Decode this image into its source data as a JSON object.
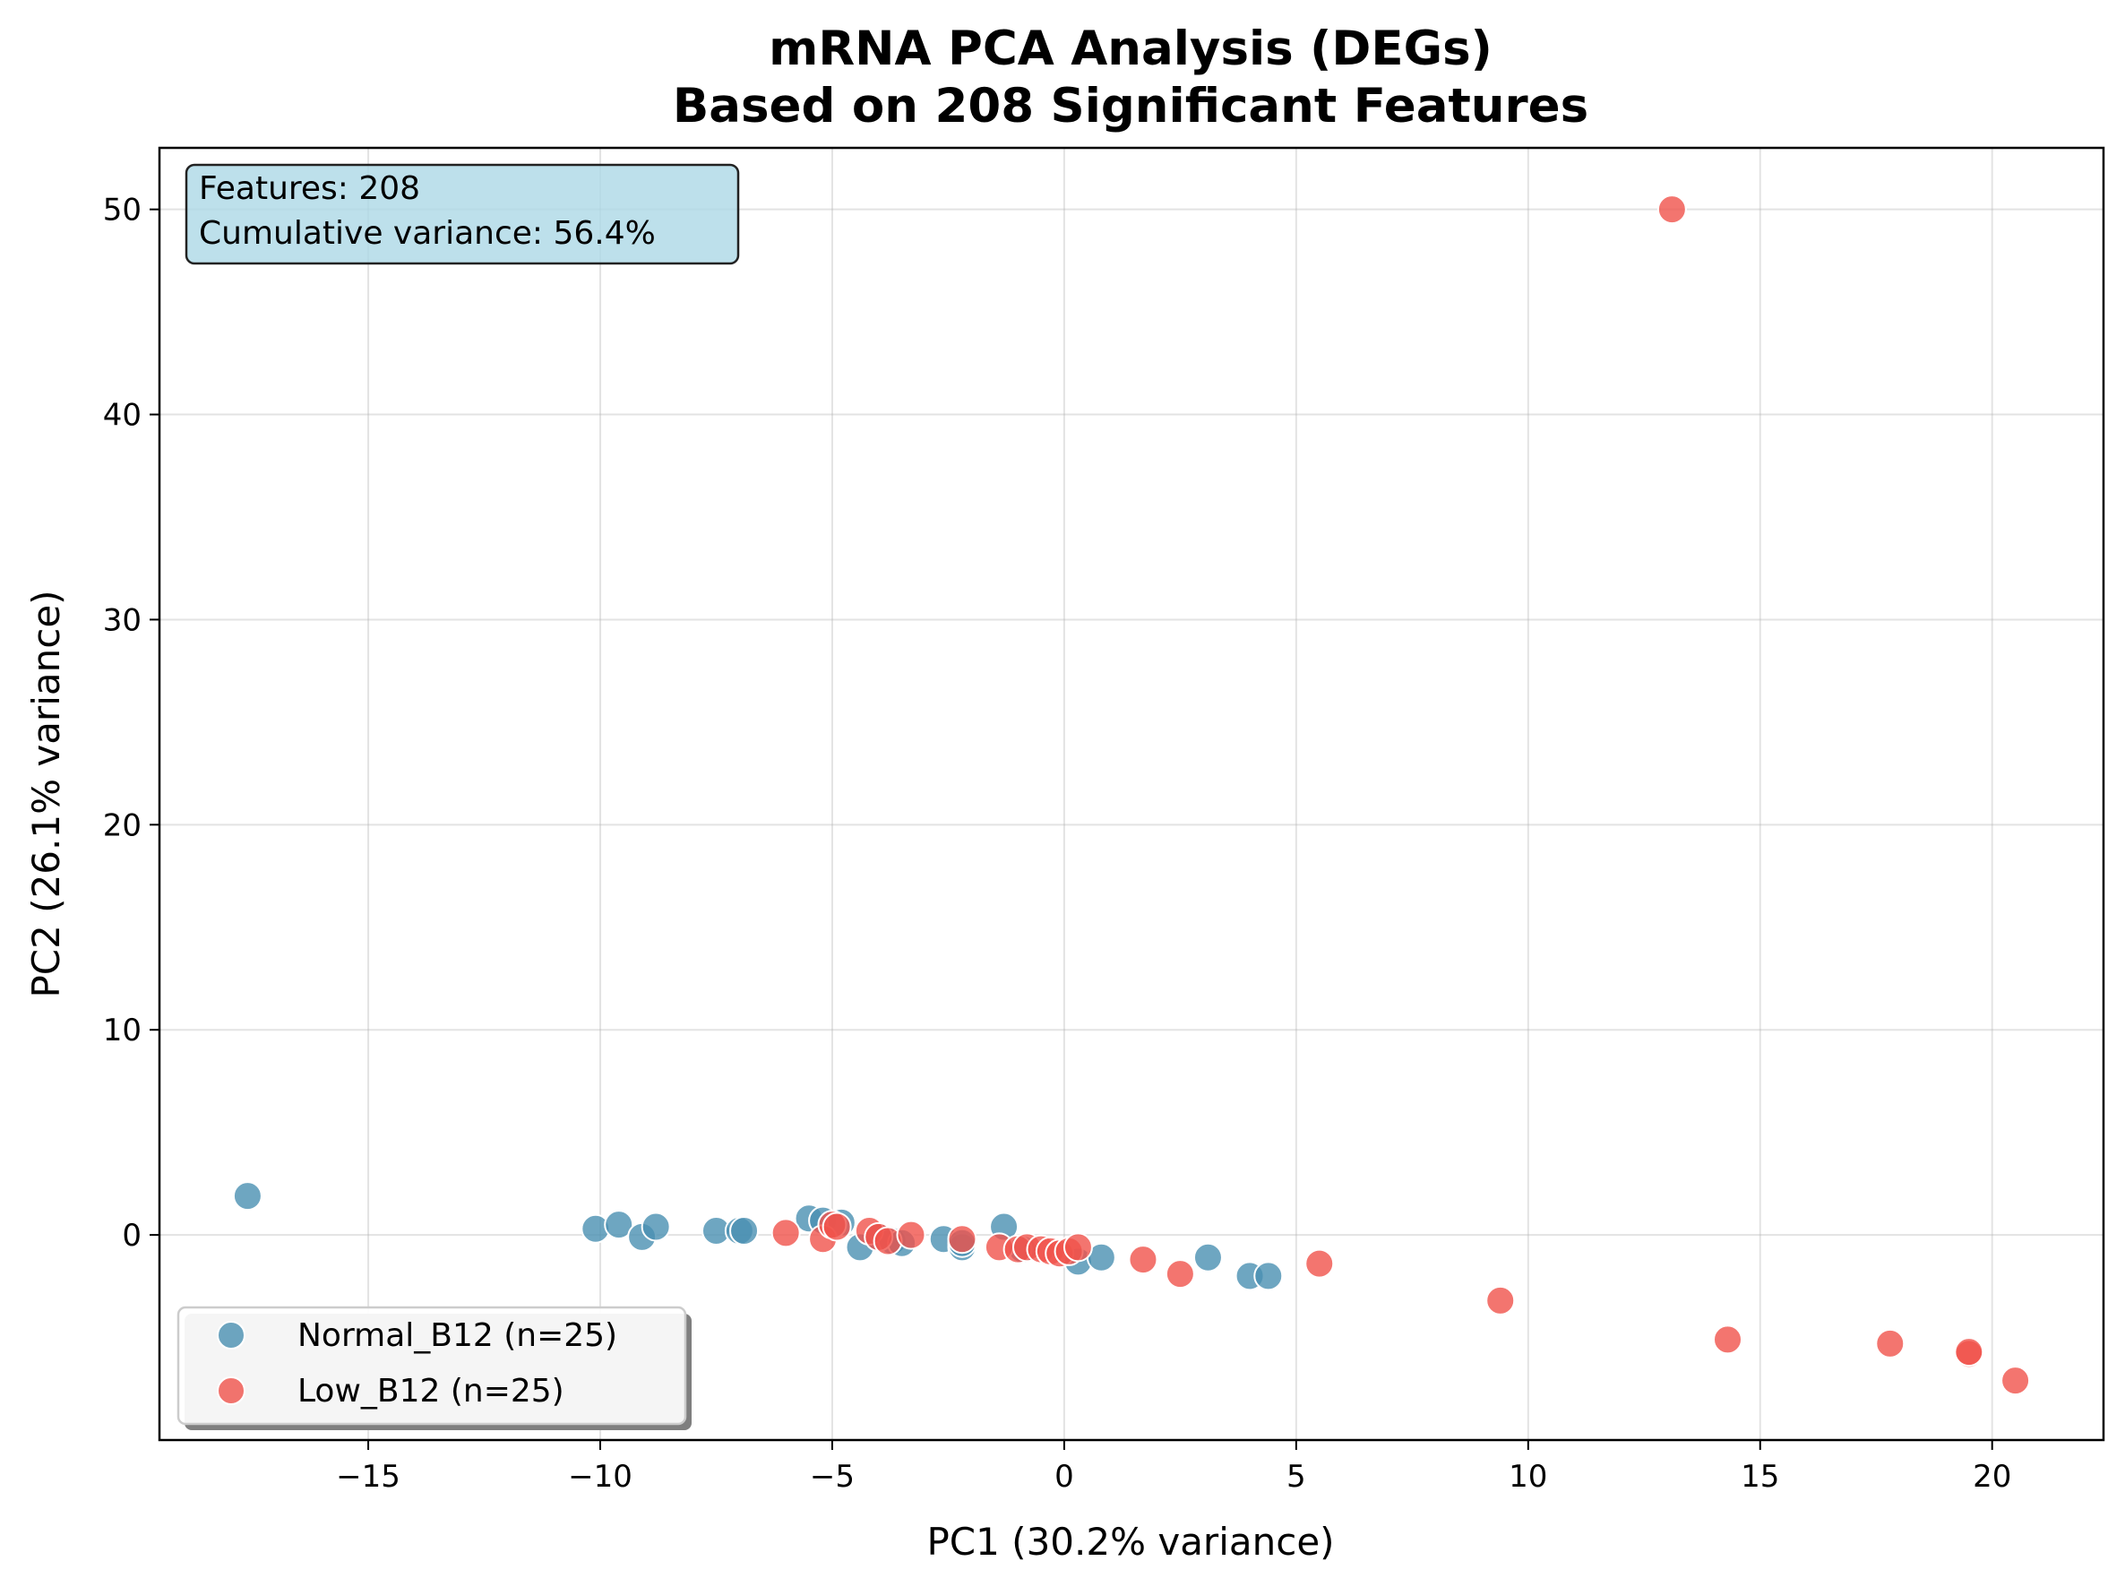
{
  "chart_data": {
    "type": "scatter",
    "title_line1": "mRNA PCA Analysis (DEGs)",
    "title_line2": "Based on 208 Significant Features",
    "xlabel": "PC1 (30.2% variance)",
    "ylabel": "PC2 (26.1% variance)",
    "xlim": [
      -19.5,
      22.4
    ],
    "ylim": [
      -10,
      53
    ],
    "xticks": [
      -15,
      -10,
      -5,
      0,
      5,
      10,
      15,
      20
    ],
    "xtick_labels": [
      "−15",
      "−10",
      "−5",
      "0",
      "5",
      "10",
      "15",
      "20"
    ],
    "yticks": [
      0,
      10,
      20,
      30,
      40,
      50
    ],
    "ytick_labels": [
      "0",
      "10",
      "20",
      "30",
      "40",
      "50"
    ],
    "grid": true,
    "info_box": {
      "line1": "Features: 208",
      "line2": "Cumulative variance: 56.4%"
    },
    "legend_position": "lower-left",
    "series": [
      {
        "name": "Normal_B12 (n=25)",
        "color": "#4a90b2",
        "points": [
          [
            -17.6,
            1.9
          ],
          [
            -10.1,
            0.3
          ],
          [
            -9.6,
            0.5
          ],
          [
            -9.1,
            -0.1
          ],
          [
            -8.8,
            0.4
          ],
          [
            -7.5,
            0.2
          ],
          [
            -7.0,
            0.2
          ],
          [
            -6.9,
            0.2
          ],
          [
            -5.5,
            0.8
          ],
          [
            -5.2,
            0.7
          ],
          [
            -4.8,
            0.6
          ],
          [
            -4.4,
            -0.6
          ],
          [
            -4.0,
            -0.1
          ],
          [
            -3.7,
            -0.3
          ],
          [
            -3.5,
            -0.4
          ],
          [
            -2.6,
            -0.2
          ],
          [
            -2.2,
            -0.6
          ],
          [
            -2.2,
            -0.4
          ],
          [
            -1.3,
            0.4
          ],
          [
            -0.9,
            -0.7
          ],
          [
            0.3,
            -1.3
          ],
          [
            0.8,
            -1.1
          ],
          [
            3.1,
            -1.1
          ],
          [
            4.0,
            -2.0
          ],
          [
            4.4,
            -2.0
          ]
        ]
      },
      {
        "name": "Low_B12 (n=25)",
        "color": "#f0524b",
        "points": [
          [
            -6.0,
            0.1
          ],
          [
            -5.2,
            -0.2
          ],
          [
            -5.0,
            0.5
          ],
          [
            -4.9,
            0.4
          ],
          [
            -4.2,
            0.2
          ],
          [
            -4.0,
            -0.1
          ],
          [
            -3.8,
            -0.3
          ],
          [
            -3.3,
            0.0
          ],
          [
            -2.2,
            -0.2
          ],
          [
            -1.4,
            -0.6
          ],
          [
            -1.0,
            -0.7
          ],
          [
            -0.8,
            -0.6
          ],
          [
            -0.5,
            -0.7
          ],
          [
            -0.3,
            -0.8
          ],
          [
            -0.1,
            -0.9
          ],
          [
            0.1,
            -0.8
          ],
          [
            0.3,
            -0.6
          ],
          [
            1.7,
            -1.2
          ],
          [
            2.5,
            -1.9
          ],
          [
            5.5,
            -1.4
          ],
          [
            9.4,
            -3.2
          ],
          [
            13.1,
            50.0
          ],
          [
            14.3,
            -5.1
          ],
          [
            17.8,
            -5.3
          ],
          [
            19.5,
            -5.8
          ]
        ]
      },
      {
        "name": "",
        "color": "#f0524b",
        "points": [
          [
            20.5,
            -7.1
          ],
          [
            19.5,
            -5.7
          ]
        ]
      }
    ]
  }
}
